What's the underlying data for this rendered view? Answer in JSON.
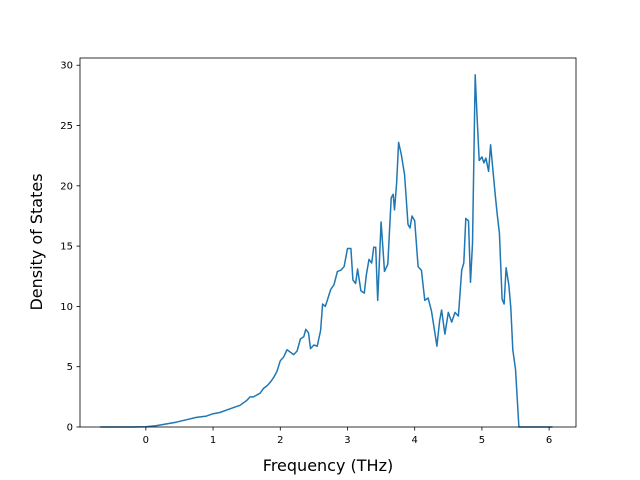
{
  "chart_data": {
    "type": "line",
    "title": "",
    "xlabel": "Frequency (THz)",
    "ylabel": "Density of States",
    "xlim": [
      -0.98,
      6.4
    ],
    "ylim": [
      0,
      30.6
    ],
    "xticks": [
      0,
      1,
      2,
      3,
      4,
      5,
      6
    ],
    "yticks": [
      0,
      5,
      10,
      15,
      20,
      25,
      30
    ],
    "grid": false,
    "legend": "none",
    "series": [
      {
        "color": "#1f77b4",
        "x": [
          -0.68,
          -0.4,
          -0.2,
          0.0,
          0.15,
          0.3,
          0.45,
          0.6,
          0.75,
          0.9,
          1.0,
          1.1,
          1.2,
          1.3,
          1.4,
          1.5,
          1.55,
          1.6,
          1.7,
          1.75,
          1.8,
          1.85,
          1.9,
          1.95,
          2.0,
          2.05,
          2.1,
          2.15,
          2.2,
          2.25,
          2.3,
          2.35,
          2.38,
          2.42,
          2.45,
          2.5,
          2.55,
          2.6,
          2.63,
          2.67,
          2.7,
          2.75,
          2.8,
          2.85,
          2.9,
          2.95,
          3.0,
          3.05,
          3.08,
          3.12,
          3.15,
          3.2,
          3.25,
          3.28,
          3.32,
          3.36,
          3.39,
          3.42,
          3.45,
          3.5,
          3.55,
          3.6,
          3.65,
          3.68,
          3.7,
          3.73,
          3.76,
          3.8,
          3.85,
          3.9,
          3.93,
          3.96,
          4.0,
          4.05,
          4.1,
          4.15,
          4.2,
          4.25,
          4.3,
          4.33,
          4.37,
          4.4,
          4.45,
          4.5,
          4.55,
          4.6,
          4.65,
          4.7,
          4.73,
          4.76,
          4.8,
          4.83,
          4.86,
          4.9,
          4.93,
          4.96,
          5.0,
          5.03,
          5.06,
          5.1,
          5.13,
          5.16,
          5.2,
          5.23,
          5.26,
          5.3,
          5.33,
          5.36,
          5.4,
          5.43,
          5.46,
          5.5,
          5.55,
          5.6,
          6.05
        ],
        "y": [
          0,
          0,
          0,
          0.02,
          0.1,
          0.25,
          0.4,
          0.6,
          0.8,
          0.9,
          1.1,
          1.2,
          1.4,
          1.6,
          1.8,
          2.2,
          2.5,
          2.5,
          2.8,
          3.2,
          3.4,
          3.7,
          4.1,
          4.6,
          5.5,
          5.8,
          6.4,
          6.2,
          6.0,
          6.3,
          7.3,
          7.5,
          8.1,
          7.8,
          6.5,
          6.8,
          6.7,
          8.0,
          10.2,
          10.0,
          10.5,
          11.4,
          11.8,
          12.9,
          13.0,
          13.3,
          14.8,
          14.8,
          12.2,
          11.9,
          13.1,
          11.3,
          11.1,
          12.6,
          13.9,
          13.6,
          14.9,
          14.9,
          10.5,
          17.0,
          12.9,
          13.5,
          19.0,
          19.3,
          18.0,
          20.2,
          23.6,
          22.6,
          20.9,
          16.8,
          16.5,
          17.5,
          17.1,
          13.3,
          13.0,
          10.5,
          10.7,
          9.6,
          7.8,
          6.7,
          8.8,
          9.7,
          7.7,
          9.5,
          8.7,
          9.5,
          9.2,
          13.0,
          13.6,
          17.3,
          17.1,
          12.0,
          15.2,
          29.2,
          25.5,
          22.1,
          22.4,
          21.9,
          22.3,
          21.2,
          23.4,
          21.5,
          19.2,
          17.5,
          16.1,
          10.6,
          10.2,
          13.2,
          11.8,
          9.9,
          6.4,
          4.8,
          0,
          0,
          0
        ]
      }
    ]
  }
}
